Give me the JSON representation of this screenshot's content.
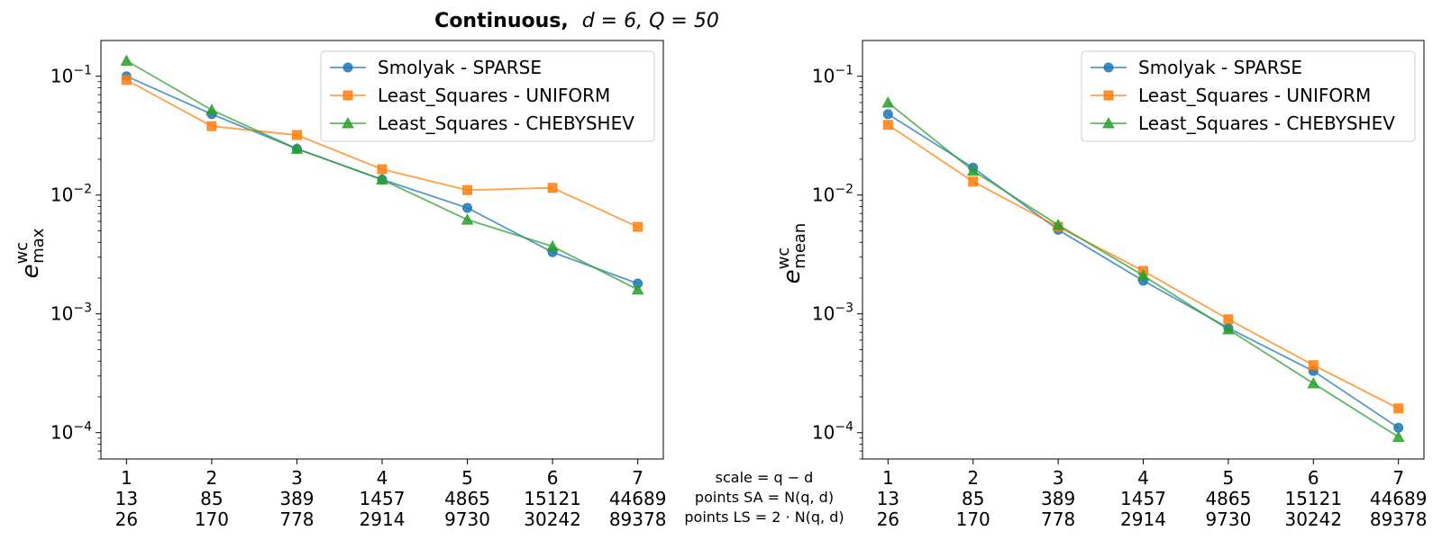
{
  "figure": {
    "title_bold": "Continuous,",
    "title_rest": "d = 6, Q = 50",
    "bottom_labels": [
      "scale = q − d",
      "points SA = N(q, d)",
      "points LS = 2 · N(q, d)"
    ]
  },
  "chart_data": [
    {
      "type": "line",
      "yscale": "log",
      "ylim": [
        6e-05,
        0.2
      ],
      "xlim": [
        0.7,
        7.3
      ],
      "ylabel_base": "e",
      "ylabel_sup": "wc",
      "ylabel_sub": "max",
      "yticks": [
        {
          "value": 0.1,
          "base": "10",
          "exp": "−1"
        },
        {
          "value": 0.01,
          "base": "10",
          "exp": "−2"
        },
        {
          "value": 0.001,
          "base": "10",
          "exp": "−3"
        },
        {
          "value": 0.0001,
          "base": "10",
          "exp": "−4"
        }
      ],
      "x": [
        1,
        2,
        3,
        4,
        5,
        6,
        7
      ],
      "xtick_rows": [
        [
          "1",
          "2",
          "3",
          "4",
          "5",
          "6",
          "7"
        ],
        [
          "13",
          "85",
          "389",
          "1457",
          "4865",
          "15121",
          "44689"
        ],
        [
          "26",
          "170",
          "778",
          "2914",
          "9730",
          "30242",
          "89378"
        ]
      ],
      "legend_position": "top-right",
      "series": [
        {
          "name": "Smolyak - SPARSE",
          "color": "#1f77b4",
          "marker": "circle",
          "values": [
            0.1,
            0.048,
            0.0245,
            0.0135,
            0.0078,
            0.0033,
            0.0018
          ]
        },
        {
          "name": "Least_Squares - UNIFORM",
          "color": "#ff7f0e",
          "marker": "square",
          "values": [
            0.093,
            0.038,
            0.032,
            0.0165,
            0.011,
            0.0115,
            0.0054
          ]
        },
        {
          "name": "Least_Squares - CHEBYSHEV",
          "color": "#2ca02c",
          "marker": "triangle",
          "values": [
            0.135,
            0.052,
            0.0245,
            0.0135,
            0.0062,
            0.0037,
            0.0016
          ]
        }
      ]
    },
    {
      "type": "line",
      "yscale": "log",
      "ylim": [
        6e-05,
        0.2
      ],
      "xlim": [
        0.7,
        7.3
      ],
      "ylabel_base": "e",
      "ylabel_sup": "wc",
      "ylabel_sub": "mean",
      "yticks": [
        {
          "value": 0.1,
          "base": "10",
          "exp": "−1"
        },
        {
          "value": 0.01,
          "base": "10",
          "exp": "−2"
        },
        {
          "value": 0.001,
          "base": "10",
          "exp": "−3"
        },
        {
          "value": 0.0001,
          "base": "10",
          "exp": "−4"
        }
      ],
      "x": [
        1,
        2,
        3,
        4,
        5,
        6,
        7
      ],
      "xtick_rows": [
        [
          "1",
          "2",
          "3",
          "4",
          "5",
          "6",
          "7"
        ],
        [
          "13",
          "85",
          "389",
          "1457",
          "4865",
          "15121",
          "44689"
        ],
        [
          "26",
          "170",
          "778",
          "2914",
          "9730",
          "30242",
          "89378"
        ]
      ],
      "legend_position": "top-right",
      "series": [
        {
          "name": "Smolyak - SPARSE",
          "color": "#1f77b4",
          "marker": "circle",
          "values": [
            0.048,
            0.017,
            0.0051,
            0.0019,
            0.00076,
            0.00033,
            0.00011
          ]
        },
        {
          "name": "Least_Squares - UNIFORM",
          "color": "#ff7f0e",
          "marker": "square",
          "values": [
            0.039,
            0.013,
            0.0054,
            0.0023,
            0.0009,
            0.00037,
            0.00016
          ]
        },
        {
          "name": "Least_Squares - CHEBYSHEV",
          "color": "#2ca02c",
          "marker": "triangle",
          "values": [
            0.06,
            0.016,
            0.0056,
            0.0021,
            0.00074,
            0.00026,
            9.2e-05
          ]
        }
      ]
    }
  ]
}
